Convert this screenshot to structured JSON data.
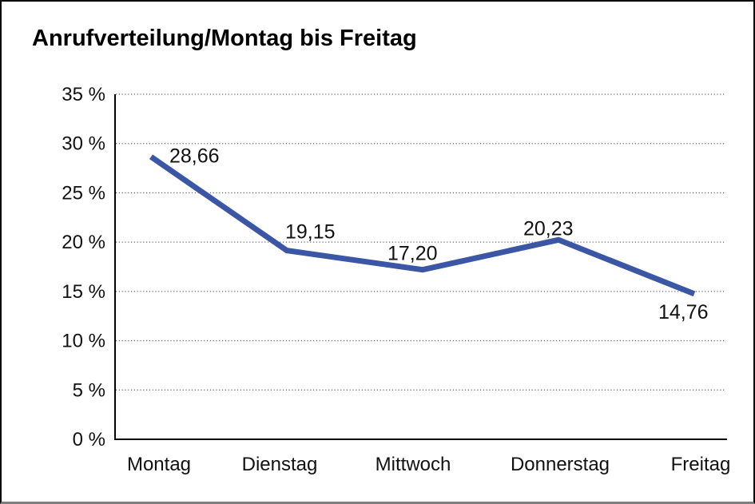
{
  "chart_data": {
    "type": "line",
    "title": "Anrufverteilung/Montag bis Freitag",
    "categories": [
      "Montag",
      "Dienstag",
      "Mittwoch",
      "Donnerstag",
      "Freitag"
    ],
    "series": [
      {
        "name": "Anrufverteilung",
        "values": [
          28.66,
          19.15,
          17.2,
          20.23,
          14.76
        ],
        "point_labels": [
          "28,66",
          "19,15",
          "17,20",
          "20,23",
          "14,76"
        ]
      }
    ],
    "xlabel": "",
    "ylabel": "",
    "ylim": [
      0,
      35
    ],
    "ytick_values": [
      35,
      30,
      25,
      20,
      15,
      10,
      5,
      0
    ],
    "ytick_labels": [
      "35 %",
      "30 %",
      "25 %",
      "20 %",
      "15 %",
      "10 %",
      "5 %",
      "0 %"
    ],
    "grid": "horizontal-dotted",
    "legend": "none",
    "colors": {
      "line": "#3A56A4",
      "axis": "#000000",
      "gridline": "#666666",
      "text": "#111111"
    }
  }
}
